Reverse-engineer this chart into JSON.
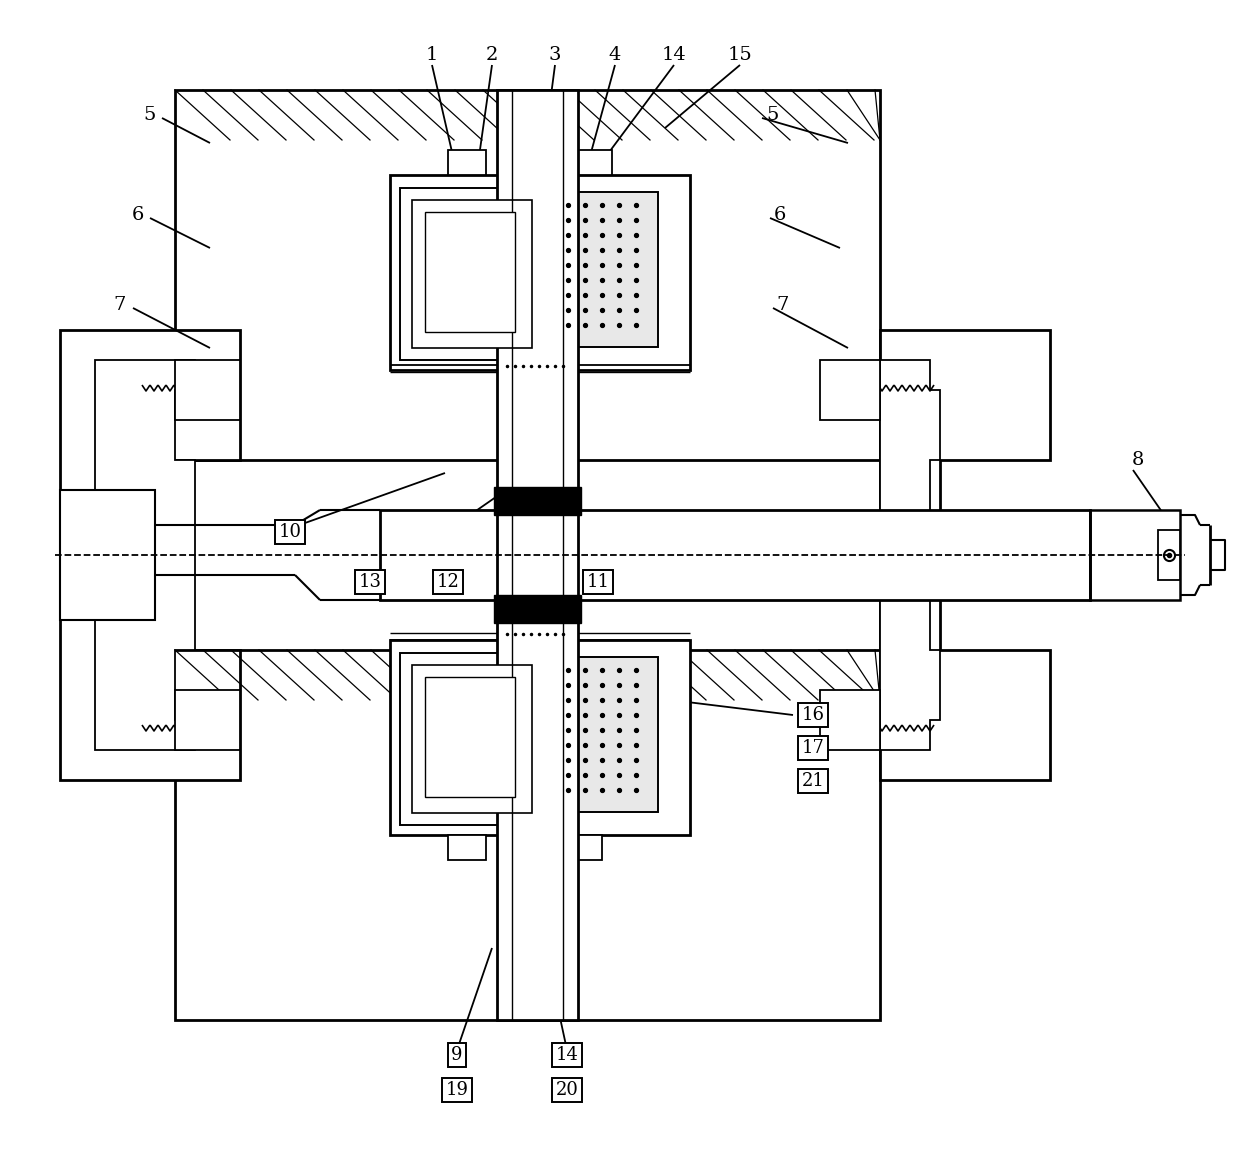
{
  "bg_color": "#ffffff",
  "line_color": "#000000",
  "figsize": [
    12.4,
    11.64
  ],
  "dpi": 100
}
